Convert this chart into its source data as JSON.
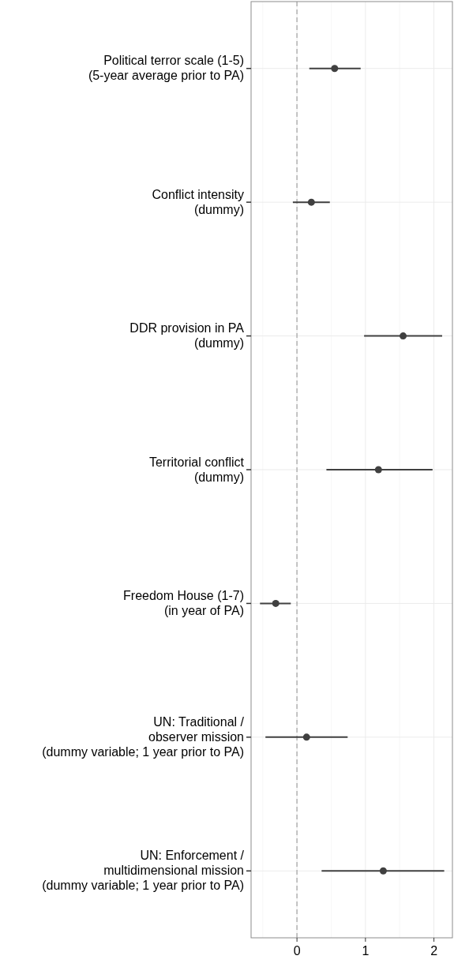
{
  "chart_data": {
    "type": "scatter",
    "orientation": "horizontal",
    "categories": [
      "Political terror scale (1-5)\n(5-year average prior to PA)",
      "Conflict intensity\n(dummy)",
      "DDR provision in PA\n(dummy)",
      "Territorial conflict\n(dummy)",
      "Freedom House (1-7)\n(in year of PA)",
      "UN: Traditional /\nobserver mission\n(dummy variable; 1 year prior to PA)",
      "UN: Enforcement /\nmultidimensional mission\n(dummy variable; 1 year prior to PA)"
    ],
    "values": [
      0.55,
      0.21,
      1.55,
      1.19,
      -0.31,
      0.14,
      1.26
    ],
    "errors": [
      [
        0.18,
        0.93
      ],
      [
        -0.06,
        0.48
      ],
      [
        0.98,
        2.12
      ],
      [
        0.43,
        1.98
      ],
      [
        -0.54,
        -0.09
      ],
      [
        -0.46,
        0.74
      ],
      [
        0.36,
        2.15
      ]
    ],
    "color": "#404040",
    "marker": "circle",
    "xlim": [
      -0.67,
      2.27
    ],
    "xticks": [
      {
        "value": -0.5,
        "label": null
      },
      0,
      {
        "value": 0.5,
        "label": null
      },
      1,
      {
        "value": 1.5,
        "label": null
      },
      2
    ],
    "grid": true,
    "ref_lines": [
      {
        "axis": "x",
        "value": 0,
        "color": "#b3b3b3",
        "line_style": "dashed"
      }
    ]
  }
}
